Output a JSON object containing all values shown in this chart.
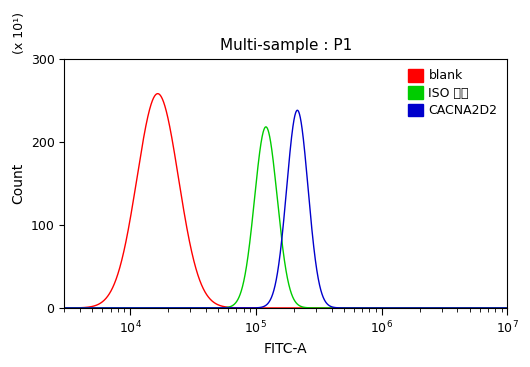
{
  "title": "Multi-sample : P1",
  "xlabel": "FITC-A",
  "ylabel": "Count",
  "ylim": [
    0,
    300
  ],
  "xlim_log": [
    3000,
    10000000.0
  ],
  "yticks": [
    0,
    100,
    200,
    300
  ],
  "y_scale_label": "(x 10¹)",
  "curves": [
    {
      "label": "blank",
      "color": "#ff0000",
      "mu_log10": 4.22,
      "sigma_log10": 0.165,
      "peak": 258
    },
    {
      "label": "ISO 多抗",
      "color": "#00cc00",
      "mu_log10": 5.08,
      "sigma_log10": 0.09,
      "peak": 218
    },
    {
      "label": "CACNA2D2",
      "color": "#0000cc",
      "mu_log10": 5.33,
      "sigma_log10": 0.085,
      "peak": 238
    }
  ],
  "background_color": "#ffffff",
  "plot_bg_color": "#ffffff",
  "legend_fontsize": 9,
  "title_fontsize": 11,
  "axis_fontsize": 10,
  "tick_fontsize": 9,
  "linewidth": 1.0
}
